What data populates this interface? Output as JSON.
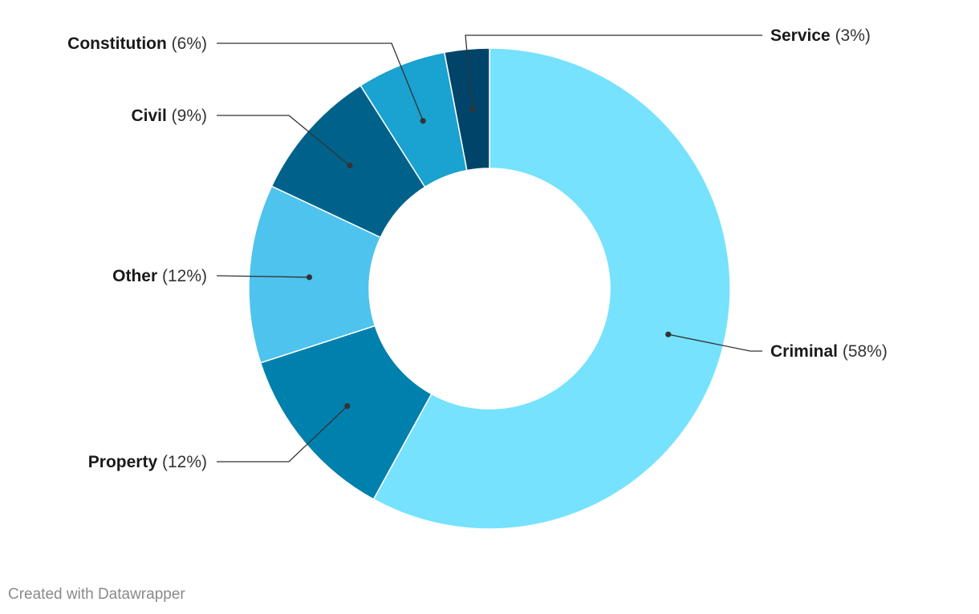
{
  "footer": "Created with Datawrapper",
  "chart_data": {
    "type": "pie",
    "variant": "donut",
    "title": "",
    "slices": [
      {
        "label": "Criminal",
        "value": 58,
        "display": "(58%)",
        "color": "#76e2fd"
      },
      {
        "label": "Property",
        "value": 12,
        "display": "(12%)",
        "color": "#0080ac"
      },
      {
        "label": "Other",
        "value": 12,
        "display": "(12%)",
        "color": "#4ec3ed"
      },
      {
        "label": "Civil",
        "value": 9,
        "display": "(9%)",
        "color": "#00628a"
      },
      {
        "label": "Constitution",
        "value": 6,
        "display": "(6%)",
        "color": "#1aa2d0"
      },
      {
        "label": "Service",
        "value": 3,
        "display": "(3%)",
        "color": "#00446a"
      }
    ],
    "legend": "none",
    "labels": "outside with leader lines"
  }
}
